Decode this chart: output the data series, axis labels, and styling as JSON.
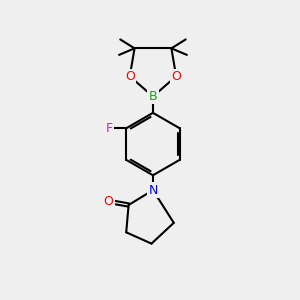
{
  "bg_color": "#efefef",
  "bond_color": "#000000",
  "atom_colors": {
    "O": "#ff0000",
    "B": "#00b300",
    "F": "#ff00ff",
    "N": "#0000ff",
    "C": "#000000"
  },
  "line_width": 1.5,
  "font_size": 9,
  "fig_size": [
    3.0,
    3.0
  ],
  "dpi": 100
}
